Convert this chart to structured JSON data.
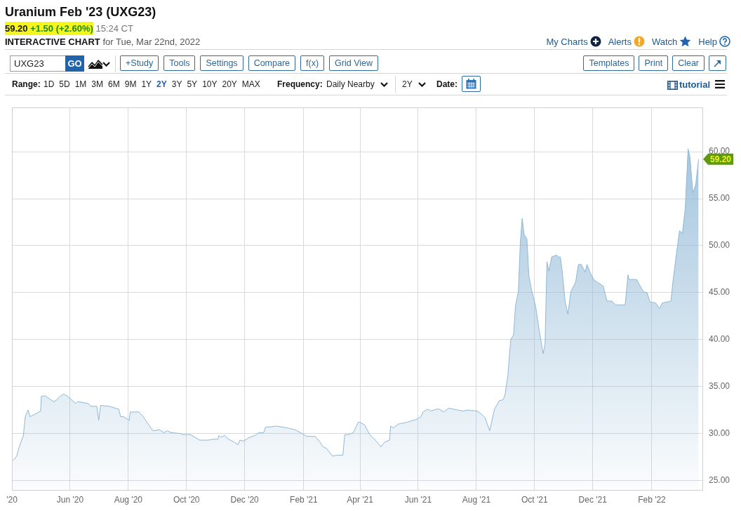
{
  "chart_data": {
    "type": "area",
    "title": "Uranium Feb '23 (UXG23)",
    "subtitle": "59.20 +1.50 (+2.60%) 15:24 CT",
    "x": [
      "2020-04-02",
      "2020-04-06",
      "2020-04-09",
      "2020-04-13",
      "2020-04-15",
      "2020-04-18",
      "2020-04-20",
      "2020-04-26",
      "2020-05-01",
      "2020-05-02",
      "2020-05-06",
      "2020-05-15",
      "2020-05-18",
      "2020-05-22",
      "2020-05-25",
      "2020-05-29",
      "2020-06-07",
      "2020-06-09",
      "2020-06-20",
      "2020-06-23",
      "2020-06-29",
      "2020-07-01",
      "2020-07-03",
      "2020-07-12",
      "2020-07-22",
      "2020-07-24",
      "2020-07-27",
      "2020-08-02",
      "2020-08-03",
      "2020-08-12",
      "2020-08-16",
      "2020-08-22",
      "2020-08-27",
      "2020-09-03",
      "2020-09-07",
      "2020-09-11",
      "2020-09-15",
      "2020-09-25",
      "2020-09-27",
      "2020-10-05",
      "2020-10-15",
      "2020-10-24",
      "2020-10-29",
      "2020-11-03",
      "2020-11-04",
      "2020-11-06",
      "2020-11-10",
      "2020-11-14",
      "2020-11-20",
      "2020-11-24",
      "2020-11-26",
      "2020-11-30",
      "2020-12-06",
      "2020-12-12",
      "2020-12-16",
      "2020-12-21",
      "2020-12-23",
      "2020-12-27",
      "2021-01-03",
      "2021-01-15",
      "2021-01-23",
      "2021-02-01",
      "2021-02-04",
      "2021-02-13",
      "2021-02-18",
      "2021-02-21",
      "2021-02-25",
      "2021-03-03",
      "2021-03-08",
      "2021-03-14",
      "2021-03-16",
      "2021-03-20",
      "2021-03-25",
      "2021-03-30",
      "2021-04-01",
      "2021-04-06",
      "2021-04-11",
      "2021-04-18",
      "2021-04-23",
      "2021-04-27",
      "2021-05-02",
      "2021-05-03",
      "2021-05-06",
      "2021-05-11",
      "2021-05-20",
      "2021-05-30",
      "2021-06-04",
      "2021-06-06",
      "2021-06-11",
      "2021-06-14",
      "2021-06-20",
      "2021-06-23",
      "2021-06-28",
      "2021-07-03",
      "2021-07-18",
      "2021-07-22",
      "2021-08-02",
      "2021-08-07",
      "2021-08-10",
      "2021-08-15",
      "2021-08-20",
      "2021-08-25",
      "2021-08-29",
      "2021-08-31",
      "2021-09-03",
      "2021-09-06",
      "2021-09-09",
      "2021-09-11",
      "2021-09-14",
      "2021-09-16",
      "2021-09-18",
      "2021-09-20",
      "2021-09-23",
      "2021-09-25",
      "2021-09-28",
      "2021-10-02",
      "2021-10-06",
      "2021-10-10",
      "2021-10-12",
      "2021-10-14",
      "2021-10-16",
      "2021-10-19",
      "2021-10-24",
      "2021-10-26",
      "2021-10-28",
      "2021-10-30",
      "2021-11-02",
      "2021-11-05",
      "2021-11-08",
      "2021-11-13",
      "2021-11-16",
      "2021-11-19",
      "2021-11-23",
      "2021-11-25",
      "2021-11-28",
      "2021-12-02",
      "2021-12-06",
      "2021-12-12",
      "2021-12-16",
      "2021-12-21",
      "2021-12-25",
      "2022-01-04",
      "2022-01-07",
      "2022-01-08",
      "2022-01-16",
      "2022-01-23",
      "2022-01-27",
      "2022-01-30",
      "2022-02-05",
      "2022-02-09",
      "2022-02-12",
      "2022-02-21",
      "2022-02-23",
      "2022-02-27",
      "2022-03-02",
      "2022-03-05",
      "2022-03-08",
      "2022-03-11",
      "2022-03-13",
      "2022-03-16",
      "2022-03-19",
      "2022-03-22"
    ],
    "values": [
      27.1,
      27.6,
      28.7,
      29.8,
      31.8,
      32.5,
      31.8,
      32.1,
      32.4,
      34.0,
      34.0,
      33.4,
      33.6,
      34.0,
      34.2,
      34.0,
      33.2,
      33.4,
      33.2,
      32.9,
      32.9,
      31.4,
      33.0,
      32.9,
      32.6,
      31.8,
      31.8,
      31.4,
      32.3,
      32.3,
      31.9,
      31.0,
      30.3,
      30.4,
      30.1,
      30.3,
      30.1,
      30.0,
      29.9,
      29.9,
      29.3,
      29.3,
      29.4,
      29.4,
      29.8,
      29.6,
      29.8,
      29.4,
      29.1,
      28.8,
      29.3,
      29.2,
      29.6,
      29.8,
      30.1,
      30.1,
      30.7,
      30.7,
      30.8,
      30.6,
      30.4,
      29.9,
      29.7,
      29.7,
      29.1,
      28.6,
      28.4,
      27.6,
      27.7,
      27.7,
      29.9,
      29.9,
      30.1,
      31.2,
      31.2,
      30.9,
      29.9,
      29.2,
      28.6,
      29.1,
      29.3,
      30.8,
      30.6,
      31.0,
      31.2,
      31.5,
      31.8,
      32.3,
      32.6,
      32.4,
      32.6,
      32.6,
      32.3,
      32.7,
      32.4,
      32.5,
      32.4,
      32.0,
      31.7,
      30.3,
      32.6,
      33.5,
      33.6,
      34.1,
      36.2,
      40.0,
      40.5,
      43.6,
      45.1,
      50.2,
      52.9,
      51.2,
      50.7,
      46.8,
      45.2,
      43.6,
      40.9,
      38.5,
      39.5,
      48.3,
      47.3,
      48.8,
      49.0,
      48.8,
      48.8,
      47.3,
      44.1,
      42.7,
      45.1,
      46.1,
      48.0,
      48.0,
      47.2,
      48.0,
      47.2,
      46.4,
      46.1,
      45.7,
      44.1,
      44.1,
      43.7,
      43.7,
      46.9,
      46.4,
      46.4,
      45.1,
      45.0,
      44.0,
      43.9,
      43.3,
      43.9,
      44.1,
      46.1,
      49.3,
      51.6,
      51.3,
      54.0,
      60.3,
      59.4,
      55.6,
      56.5,
      59.2
    ],
    "color": "#8fb8d6",
    "xlim": [
      "2020-04-01",
      "2022-03-26"
    ],
    "xticks": [
      {
        "value": "2020-04-01",
        "label": "'20"
      },
      {
        "value": "2020-06-01",
        "label": "Jun '20"
      },
      {
        "value": "2020-08-01",
        "label": "Aug '20"
      },
      {
        "value": "2020-10-01",
        "label": "Oct '20"
      },
      {
        "value": "2020-12-01",
        "label": "Dec '20"
      },
      {
        "value": "2021-02-01",
        "label": "Feb '21"
      },
      {
        "value": "2021-04-01",
        "label": "Apr '21"
      },
      {
        "value": "2021-06-01",
        "label": "Jun '21"
      },
      {
        "value": "2021-08-01",
        "label": "Aug '21"
      },
      {
        "value": "2021-10-01",
        "label": "Oct '21"
      },
      {
        "value": "2021-12-01",
        "label": "Dec '21"
      },
      {
        "value": "2022-02-01",
        "label": "Feb '22"
      }
    ],
    "ylim": [
      24,
      64.7
    ],
    "yticks": [
      {
        "value": 25,
        "label": "25.00"
      },
      {
        "value": 30,
        "label": "30.00"
      },
      {
        "value": 35,
        "label": "35.00"
      },
      {
        "value": 40,
        "label": "40.00"
      },
      {
        "value": 45,
        "label": "45.00"
      },
      {
        "value": 50,
        "label": "50.00"
      },
      {
        "value": 55,
        "label": "55.00"
      },
      {
        "value": 60,
        "label": "60.00"
      }
    ],
    "grid": true,
    "annotations": [
      "INTERACTIVE CHART",
      "for Tue, Mar 22nd, 2022",
      "My Charts",
      "Alerts",
      "Watch",
      "Help",
      "UXG23",
      "GO",
      "+Study",
      "Tools",
      "Settings",
      "Compare",
      "f(x)",
      "Grid View",
      "Templates",
      "Print",
      "Clear",
      "Range:",
      "1D",
      "5D",
      "1M",
      "3M",
      "6M",
      "9M",
      "1Y",
      "2Y",
      "3Y",
      "5Y",
      "10Y",
      "20Y",
      "MAX",
      "Frequency:",
      "Daily Nearby",
      "2Y",
      "Date:",
      "tutorial",
      {
        "text": "59.20",
        "x": "2022-03-22",
        "y": 59.2
      }
    ]
  }
}
